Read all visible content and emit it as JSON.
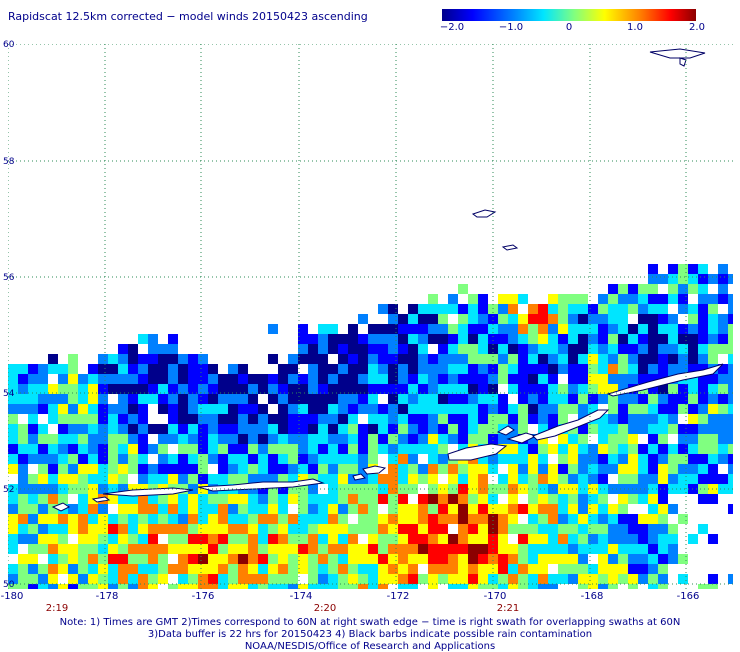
{
  "title": "Rapidscat 12.5km corrected − model winds 20150423 ascending",
  "colorbar": {
    "labels": [
      "−2.0",
      "−1.0",
      "0",
      "1.0",
      "2.0"
    ],
    "min": -2.0,
    "max": 2.0,
    "colors": [
      "#00008b",
      "#0000ff",
      "#0080ff",
      "#00e5ff",
      "#80ff80",
      "#ffff00",
      "#ff8000",
      "#ff0000",
      "#8b0000"
    ]
  },
  "axes": {
    "lat_labels": [
      "60",
      "58",
      "56",
      "54",
      "52",
      "50"
    ],
    "lon_labels": [
      "-180",
      "-178",
      "-176",
      "-174",
      "-172",
      "-170",
      "-168",
      "-166"
    ],
    "time_labels": [
      "2:19",
      "2:20",
      "2:21"
    ]
  },
  "notes": [
    "Note: 1) Times are GMT 2)Times correspond to 60N at right swath edge − time is right swath for overlapping swaths at 60N",
    "3)Data buffer is 22 hrs for 20150423 4) Black barbs indicate possible rain contamination",
    "NOAA/NESDIS/Office of Research and Applications"
  ]
}
